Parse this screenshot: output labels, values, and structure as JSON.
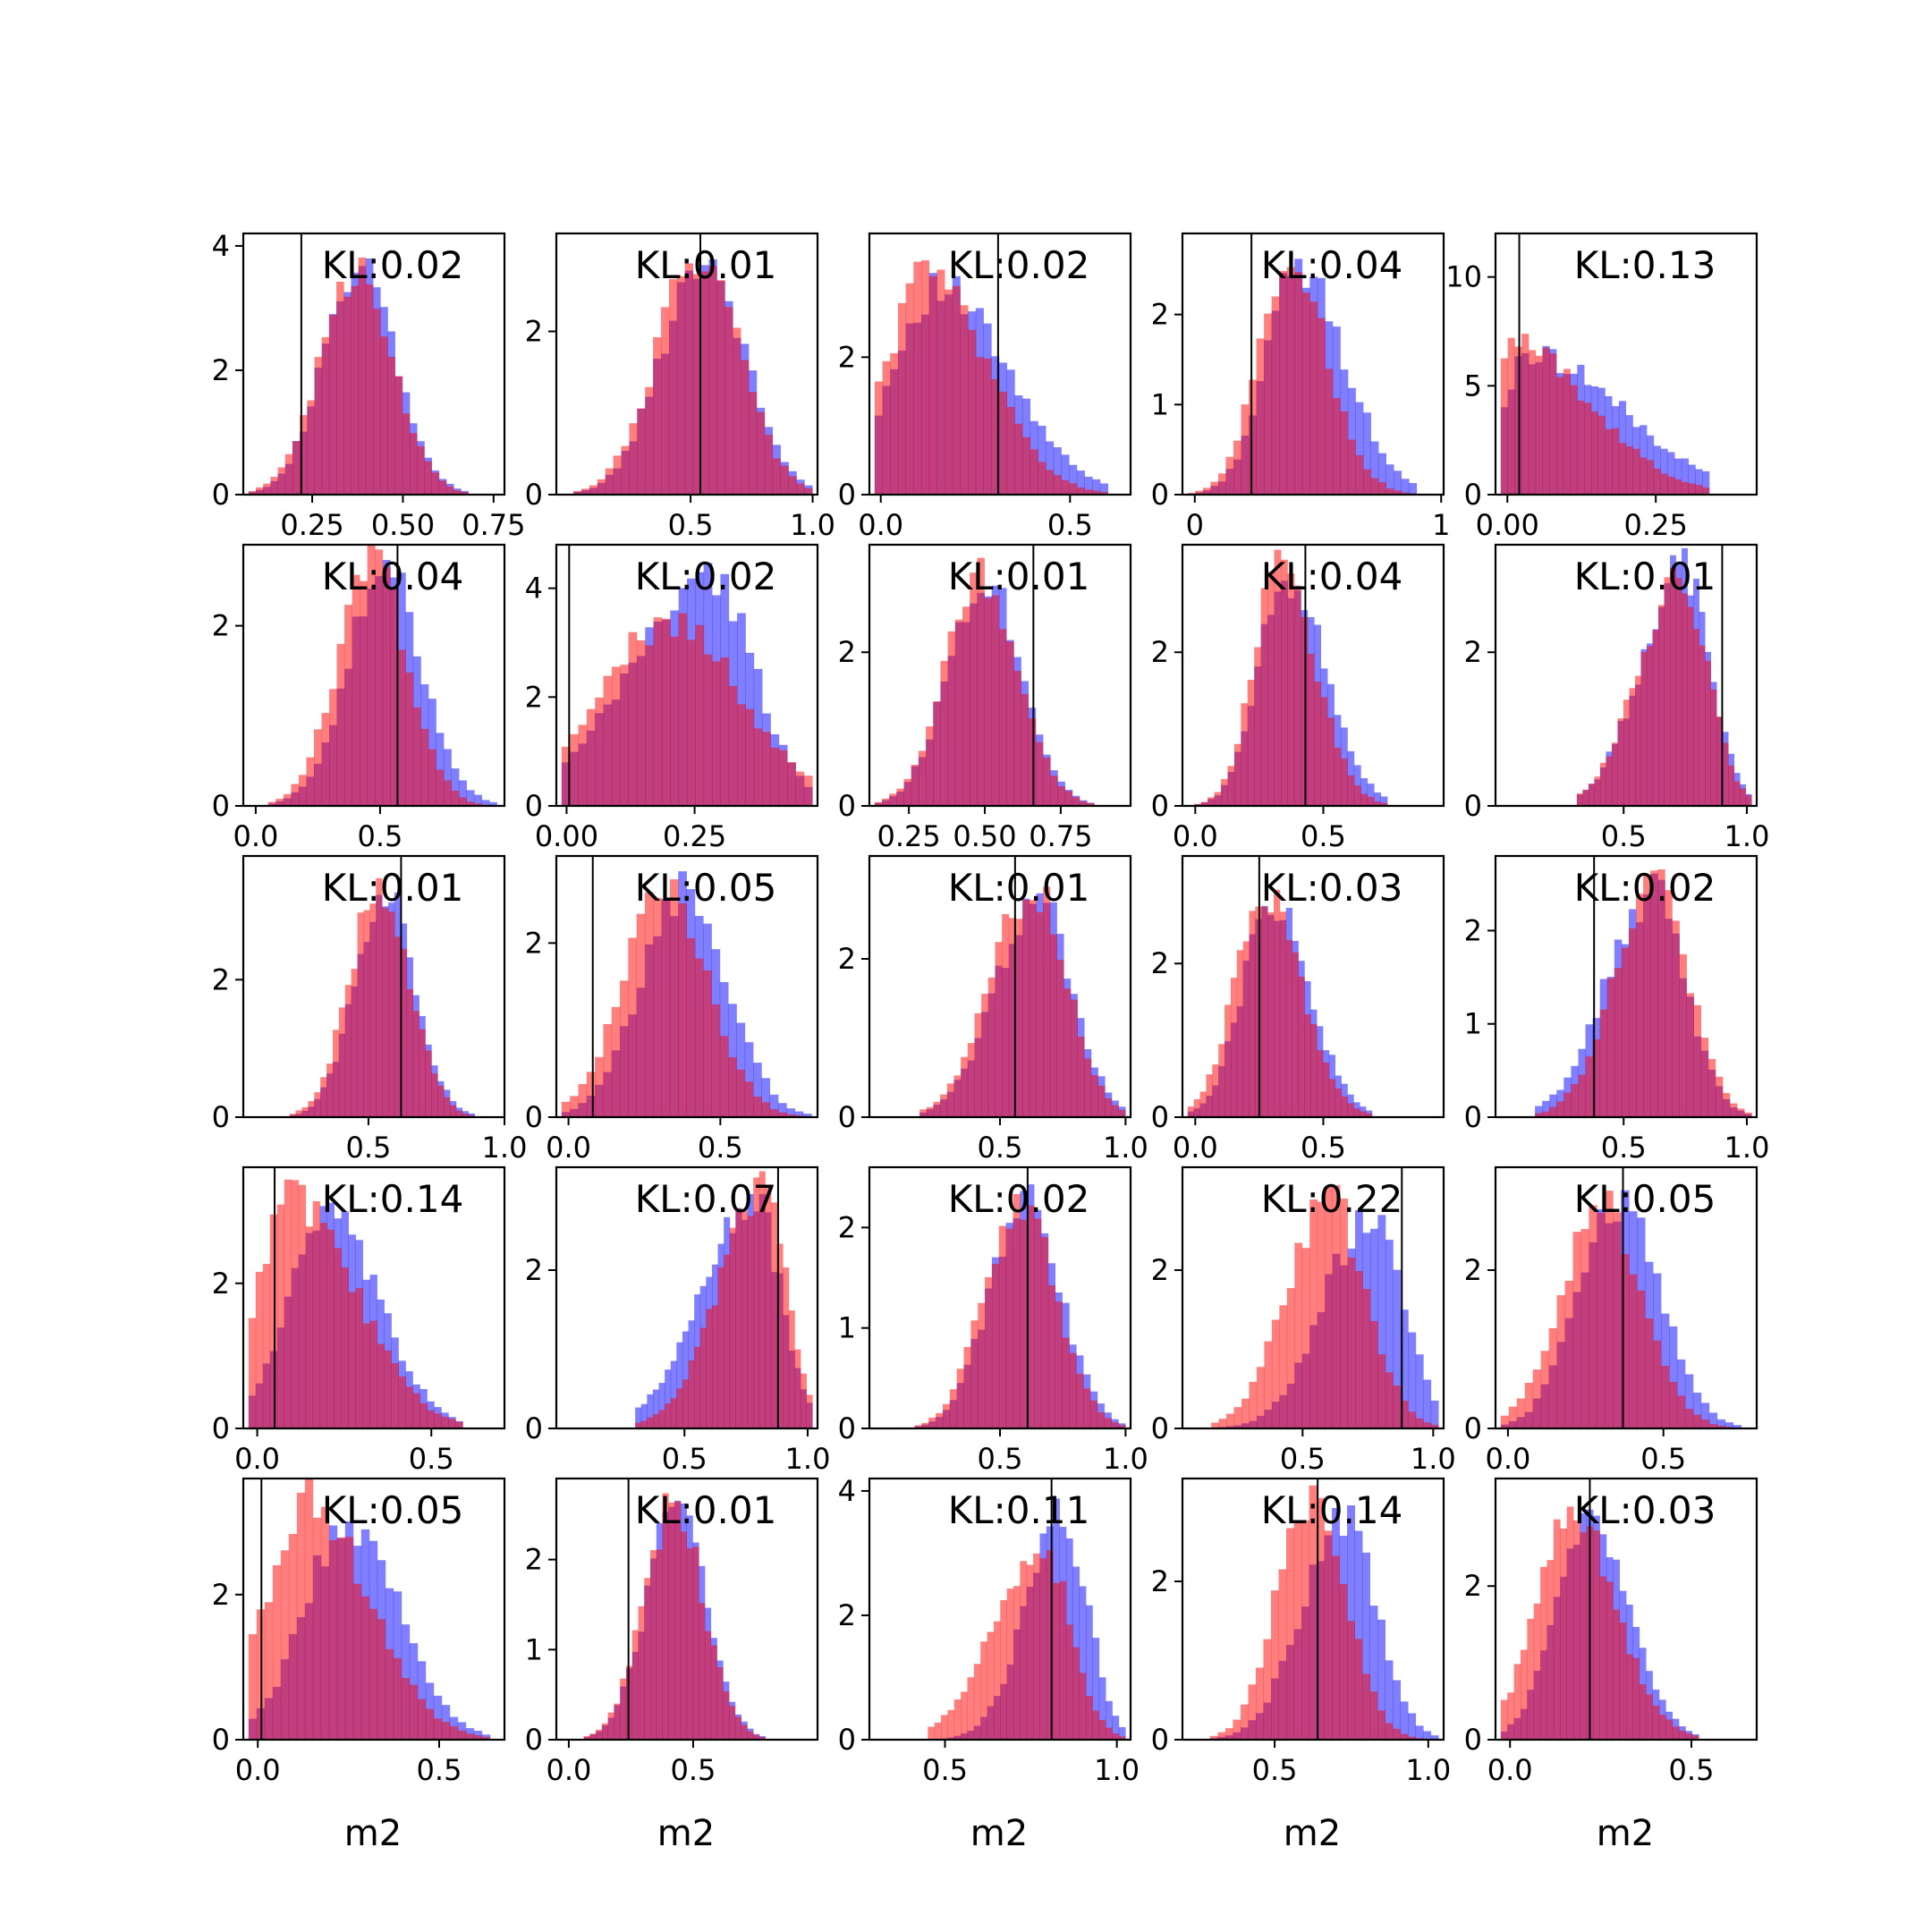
{
  "colors": {
    "series_a": "#0000ff",
    "series_b": "#ff0000",
    "frame": "#000000"
  },
  "chart_data": [
    {
      "type": "bar",
      "row": 0,
      "col": 0,
      "annotation": "KL:0.02",
      "x_range": [
        0.06,
        0.78
      ],
      "y_range": [
        0,
        4.2
      ],
      "x_ticks": [
        0.25,
        0.5,
        0.75
      ],
      "x_tick_labels": [
        "0.25",
        "0.50",
        "0.75"
      ],
      "y_ticks": [
        0,
        2,
        4
      ],
      "y_tick_labels": [
        "0",
        "2",
        "4"
      ],
      "vline": 0.22,
      "series": [
        {
          "center": 0.38,
          "spread": 0.1,
          "skew": 0,
          "peak": 3.6
        },
        {
          "center": 0.37,
          "spread": 0.1,
          "skew": 0,
          "peak": 3.6
        }
      ]
    },
    {
      "type": "bar",
      "row": 0,
      "col": 1,
      "annotation": "KL:0.01",
      "x_range": [
        -0.05,
        1.02
      ],
      "y_range": [
        0,
        3.2
      ],
      "x_ticks": [
        0.5,
        1.0
      ],
      "x_tick_labels": [
        "0.5",
        "1.0"
      ],
      "y_ticks": [
        0,
        2
      ],
      "y_tick_labels": [
        "0",
        "2"
      ],
      "vline": 0.54,
      "series": [
        {
          "center": 0.55,
          "spread": 0.17,
          "skew": 0,
          "peak": 2.9
        },
        {
          "center": 0.53,
          "spread": 0.17,
          "skew": 0,
          "peak": 2.9
        }
      ]
    },
    {
      "type": "bar",
      "row": 0,
      "col": 2,
      "annotation": "KL:0.02",
      "x_range": [
        -0.03,
        0.66
      ],
      "y_range": [
        0,
        3.8
      ],
      "x_ticks": [
        0.0,
        0.5
      ],
      "x_tick_labels": [
        "0.0",
        "0.5"
      ],
      "y_ticks": [
        0,
        2
      ],
      "y_tick_labels": [
        "0",
        "2"
      ],
      "vline": 0.31,
      "series": [
        {
          "center": 0.15,
          "spread": 0.15,
          "skew": 0.6,
          "peak": 3.0
        },
        {
          "center": 0.12,
          "spread": 0.13,
          "skew": 0.6,
          "peak": 3.2
        }
      ]
    },
    {
      "type": "bar",
      "row": 0,
      "col": 3,
      "annotation": "KL:0.04",
      "x_range": [
        -0.05,
        1.01
      ],
      "y_range": [
        0,
        2.9
      ],
      "x_ticks": [
        0,
        1
      ],
      "x_tick_labels": [
        "0",
        "1"
      ],
      "y_ticks": [
        0,
        1,
        2
      ],
      "y_tick_labels": [
        "0",
        "1",
        "2"
      ],
      "vline": 0.23,
      "series": [
        {
          "center": 0.42,
          "spread": 0.16,
          "skew": 0.5,
          "peak": 2.5
        },
        {
          "center": 0.38,
          "spread": 0.14,
          "skew": 0.3,
          "peak": 2.6
        }
      ]
    },
    {
      "type": "bar",
      "row": 0,
      "col": 4,
      "annotation": "KL:0.13",
      "x_range": [
        -0.02,
        0.42
      ],
      "y_range": [
        0,
        12
      ],
      "x_ticks": [
        0.0,
        0.25
      ],
      "x_tick_labels": [
        "0.00",
        "0.25"
      ],
      "y_ticks": [
        0,
        5,
        10
      ],
      "y_tick_labels": [
        "0",
        "5",
        "10"
      ],
      "vline": 0.02,
      "series": [
        {
          "center": 0.04,
          "spread": 0.1,
          "skew": 1.5,
          "peak": 6.5,
          "bump": 0.17
        },
        {
          "center": 0.0,
          "spread": 0.08,
          "skew": 2.0,
          "peak": 7.0
        }
      ]
    },
    {
      "type": "bar",
      "row": 1,
      "col": 0,
      "annotation": "KL:0.04",
      "x_range": [
        -0.05,
        1.0
      ],
      "y_range": [
        0,
        2.9
      ],
      "x_ticks": [
        0.0,
        0.5
      ],
      "x_tick_labels": [
        "0.0",
        "0.5"
      ],
      "y_ticks": [
        0,
        2
      ],
      "y_tick_labels": [
        "0",
        "2"
      ],
      "vline": 0.57,
      "series": [
        {
          "center": 0.52,
          "spread": 0.15,
          "skew": 0,
          "peak": 2.6
        },
        {
          "center": 0.47,
          "spread": 0.14,
          "skew": 0,
          "peak": 2.7
        }
      ]
    },
    {
      "type": "bar",
      "row": 1,
      "col": 1,
      "annotation": "KL:0.02",
      "x_range": [
        -0.02,
        0.49
      ],
      "y_range": [
        0,
        4.8
      ],
      "x_ticks": [
        0.0,
        0.25
      ],
      "x_tick_labels": [
        "0.00",
        "0.25"
      ],
      "y_ticks": [
        0,
        2,
        4
      ],
      "y_tick_labels": [
        "0",
        "2",
        "4"
      ],
      "vline": 0.005,
      "series": [
        {
          "center": 0.28,
          "spread": 0.12,
          "skew": -0.8,
          "peak": 4.2
        },
        {
          "center": 0.2,
          "spread": 0.14,
          "skew": 0,
          "peak": 3.4
        }
      ]
    },
    {
      "type": "bar",
      "row": 1,
      "col": 2,
      "annotation": "KL:0.01",
      "x_range": [
        0.12,
        0.98
      ],
      "y_range": [
        0,
        3.4
      ],
      "x_ticks": [
        0.25,
        0.5,
        0.75
      ],
      "x_tick_labels": [
        "0.25",
        "0.50",
        "0.75"
      ],
      "y_ticks": [
        0,
        2
      ],
      "y_tick_labels": [
        "0",
        "2"
      ],
      "vline": 0.66,
      "series": [
        {
          "center": 0.5,
          "spread": 0.12,
          "skew": 0,
          "peak": 3.0
        },
        {
          "center": 0.49,
          "spread": 0.12,
          "skew": 0,
          "peak": 3.0
        }
      ]
    },
    {
      "type": "bar",
      "row": 1,
      "col": 3,
      "annotation": "KL:0.04",
      "x_range": [
        -0.05,
        0.97
      ],
      "y_range": [
        0,
        3.4
      ],
      "x_ticks": [
        0.0,
        0.5
      ],
      "x_tick_labels": [
        "0.0",
        "0.5"
      ],
      "y_ticks": [
        0,
        2
      ],
      "y_tick_labels": [
        "0",
        "2"
      ],
      "vline": 0.43,
      "series": [
        {
          "center": 0.36,
          "spread": 0.13,
          "skew": 0.4,
          "peak": 3.0
        },
        {
          "center": 0.33,
          "spread": 0.12,
          "skew": 0.4,
          "peak": 3.1
        }
      ]
    },
    {
      "type": "bar",
      "row": 1,
      "col": 4,
      "annotation": "KL:0.01",
      "x_range": [
        -0.02,
        1.04
      ],
      "y_range": [
        0,
        3.4
      ],
      "x_ticks": [
        0.5,
        1.0
      ],
      "x_tick_labels": [
        "0.5",
        "1.0"
      ],
      "y_ticks": [
        0,
        2
      ],
      "y_tick_labels": [
        "0",
        "2"
      ],
      "vline": 0.9,
      "series": [
        {
          "center": 0.74,
          "spread": 0.14,
          "skew": -0.6,
          "peak": 3.1
        },
        {
          "center": 0.73,
          "spread": 0.14,
          "skew": -0.6,
          "peak": 3.0
        }
      ]
    },
    {
      "type": "bar",
      "row": 2,
      "col": 0,
      "annotation": "KL:0.01",
      "x_range": [
        0.04,
        1.0
      ],
      "y_range": [
        0,
        3.8
      ],
      "x_ticks": [
        0.5,
        1.0
      ],
      "x_tick_labels": [
        "0.5",
        "1.0"
      ],
      "y_ticks": [
        0,
        2
      ],
      "y_tick_labels": [
        "0",
        "2"
      ],
      "vline": 0.62,
      "series": [
        {
          "center": 0.56,
          "spread": 0.11,
          "skew": 0,
          "peak": 3.3
        },
        {
          "center": 0.54,
          "spread": 0.11,
          "skew": 0,
          "peak": 3.4
        }
      ]
    },
    {
      "type": "bar",
      "row": 2,
      "col": 1,
      "annotation": "KL:0.05",
      "x_range": [
        -0.04,
        0.82
      ],
      "y_range": [
        0,
        3.0
      ],
      "x_ticks": [
        0.0,
        0.5
      ],
      "x_tick_labels": [
        "0.0",
        "0.5"
      ],
      "y_ticks": [
        0,
        2
      ],
      "y_tick_labels": [
        "0",
        "2"
      ],
      "vline": 0.08,
      "series": [
        {
          "center": 0.38,
          "spread": 0.14,
          "skew": 0,
          "peak": 2.6
        },
        {
          "center": 0.32,
          "spread": 0.14,
          "skew": 0,
          "peak": 2.6
        }
      ]
    },
    {
      "type": "bar",
      "row": 2,
      "col": 2,
      "annotation": "KL:0.01",
      "x_range": [
        -0.02,
        1.02
      ],
      "y_range": [
        0,
        3.3
      ],
      "x_ticks": [
        0.5,
        1.0
      ],
      "x_tick_labels": [
        "0.5",
        "1.0"
      ],
      "y_ticks": [
        0,
        2
      ],
      "y_tick_labels": [
        "0",
        "2"
      ],
      "vline": 0.56,
      "series": [
        {
          "center": 0.65,
          "spread": 0.15,
          "skew": -0.3,
          "peak": 2.8
        },
        {
          "center": 0.63,
          "spread": 0.15,
          "skew": -0.3,
          "peak": 2.9
        }
      ]
    },
    {
      "type": "bar",
      "row": 2,
      "col": 3,
      "annotation": "KL:0.03",
      "x_range": [
        -0.05,
        0.97
      ],
      "y_range": [
        0,
        3.4
      ],
      "x_ticks": [
        0.0,
        0.5
      ],
      "x_tick_labels": [
        "0.0",
        "0.5"
      ],
      "y_ticks": [
        0,
        2
      ],
      "y_tick_labels": [
        "0",
        "2"
      ],
      "vline": 0.25,
      "series": [
        {
          "center": 0.3,
          "spread": 0.13,
          "skew": 0.3,
          "peak": 2.8
        },
        {
          "center": 0.27,
          "spread": 0.13,
          "skew": 0.3,
          "peak": 2.9
        }
      ]
    },
    {
      "type": "bar",
      "row": 2,
      "col": 4,
      "annotation": "KL:0.02",
      "x_range": [
        -0.02,
        1.04
      ],
      "y_range": [
        0,
        2.8
      ],
      "x_ticks": [
        0.5,
        1.0
      ],
      "x_tick_labels": [
        "0.5",
        "1.0"
      ],
      "y_ticks": [
        0,
        1,
        2
      ],
      "y_tick_labels": [
        "0",
        "1",
        "2"
      ],
      "vline": 0.38,
      "series": [
        {
          "center": 0.62,
          "spread": 0.16,
          "skew": -0.5,
          "peak": 2.4
        },
        {
          "center": 0.63,
          "spread": 0.15,
          "skew": -0.3,
          "peak": 2.5
        }
      ]
    },
    {
      "type": "bar",
      "row": 3,
      "col": 0,
      "annotation": "KL:0.14",
      "x_range": [
        -0.04,
        0.71
      ],
      "y_range": [
        0,
        3.6
      ],
      "x_ticks": [
        0.0,
        0.5
      ],
      "x_tick_labels": [
        "0.0",
        "0.5"
      ],
      "y_ticks": [
        0,
        2
      ],
      "y_tick_labels": [
        "0",
        "2"
      ],
      "vline": 0.05,
      "series": [
        {
          "center": 0.2,
          "spread": 0.13,
          "skew": 0.4,
          "peak": 2.9
        },
        {
          "center": 0.1,
          "spread": 0.14,
          "skew": 0.8,
          "peak": 3.2
        }
      ]
    },
    {
      "type": "bar",
      "row": 3,
      "col": 1,
      "annotation": "KL:0.07",
      "x_range": [
        -0.02,
        1.04
      ],
      "y_range": [
        0,
        3.3
      ],
      "x_ticks": [
        0.5,
        1.0
      ],
      "x_tick_labels": [
        "0.5",
        "1.0"
      ],
      "y_ticks": [
        0,
        2
      ],
      "y_tick_labels": [
        "0",
        "2"
      ],
      "vline": 0.88,
      "series": [
        {
          "center": 0.78,
          "spread": 0.16,
          "skew": -0.9,
          "peak": 2.9
        },
        {
          "center": 0.82,
          "spread": 0.14,
          "skew": -0.9,
          "peak": 3.0
        }
      ]
    },
    {
      "type": "bar",
      "row": 3,
      "col": 2,
      "annotation": "KL:0.02",
      "x_range": [
        -0.02,
        1.02
      ],
      "y_range": [
        0,
        2.6
      ],
      "x_ticks": [
        0.5,
        1.0
      ],
      "x_tick_labels": [
        "0.5",
        "1.0"
      ],
      "y_ticks": [
        0,
        1,
        2
      ],
      "y_tick_labels": [
        "0",
        "1",
        "2"
      ],
      "vline": 0.61,
      "series": [
        {
          "center": 0.6,
          "spread": 0.14,
          "skew": 0,
          "peak": 2.3
        },
        {
          "center": 0.58,
          "spread": 0.14,
          "skew": 0,
          "peak": 2.3
        }
      ]
    },
    {
      "type": "bar",
      "row": 3,
      "col": 3,
      "annotation": "KL:0.22",
      "x_range": [
        0.04,
        1.04
      ],
      "y_range": [
        0,
        3.3
      ],
      "x_ticks": [
        0.5,
        1.0
      ],
      "x_tick_labels": [
        "0.5",
        "1.0"
      ],
      "y_ticks": [
        0,
        2
      ],
      "y_tick_labels": [
        "0",
        "2"
      ],
      "vline": 0.88,
      "series": [
        {
          "center": 0.76,
          "spread": 0.15,
          "skew": -0.5,
          "peak": 2.7
        },
        {
          "center": 0.6,
          "spread": 0.15,
          "skew": -0.2,
          "peak": 2.9
        }
      ]
    },
    {
      "type": "bar",
      "row": 3,
      "col": 4,
      "annotation": "KL:0.05",
      "x_range": [
        -0.04,
        0.8
      ],
      "y_range": [
        0,
        3.3
      ],
      "x_ticks": [
        0.0,
        0.5
      ],
      "x_tick_labels": [
        "0.0",
        "0.5"
      ],
      "y_ticks": [
        0,
        2
      ],
      "y_tick_labels": [
        "0",
        "2"
      ],
      "vline": 0.37,
      "series": [
        {
          "center": 0.36,
          "spread": 0.13,
          "skew": 0,
          "peak": 2.9
        },
        {
          "center": 0.3,
          "spread": 0.13,
          "skew": 0,
          "peak": 2.8
        }
      ]
    },
    {
      "type": "bar",
      "row": 4,
      "col": 0,
      "annotation": "KL:0.05",
      "x_range": [
        -0.04,
        0.68
      ],
      "y_range": [
        0,
        3.6
      ],
      "x_ticks": [
        0.0,
        0.5
      ],
      "x_tick_labels": [
        "0.0",
        "0.5"
      ],
      "y_ticks": [
        0,
        2
      ],
      "y_tick_labels": [
        "0",
        "2"
      ],
      "vline": 0.01,
      "series": [
        {
          "center": 0.25,
          "spread": 0.13,
          "skew": 0.2,
          "peak": 3.0
        },
        {
          "center": 0.14,
          "spread": 0.14,
          "skew": 0.5,
          "peak": 3.3
        }
      ]
    },
    {
      "type": "bar",
      "row": 4,
      "col": 1,
      "annotation": "KL:0.01",
      "x_range": [
        -0.05,
        1.0
      ],
      "y_range": [
        0,
        2.9
      ],
      "x_ticks": [
        0.0,
        0.5
      ],
      "x_tick_labels": [
        "0.0",
        "0.5"
      ],
      "y_ticks": [
        0,
        1,
        2
      ],
      "y_tick_labels": [
        "0",
        "1",
        "2"
      ],
      "vline": 0.24,
      "series": [
        {
          "center": 0.43,
          "spread": 0.12,
          "skew": 0,
          "peak": 2.6
        },
        {
          "center": 0.42,
          "spread": 0.12,
          "skew": 0,
          "peak": 2.6
        }
      ]
    },
    {
      "type": "bar",
      "row": 4,
      "col": 2,
      "annotation": "KL:0.11",
      "x_range": [
        0.28,
        1.04
      ],
      "y_range": [
        0,
        4.2
      ],
      "x_ticks": [
        0.5,
        1.0
      ],
      "x_tick_labels": [
        "0.5",
        "1.0"
      ],
      "y_ticks": [
        0,
        2,
        4
      ],
      "y_tick_labels": [
        "0",
        "2",
        "4"
      ],
      "vline": 0.81,
      "series": [
        {
          "center": 0.84,
          "spread": 0.09,
          "skew": -0.5,
          "peak": 3.6
        },
        {
          "center": 0.78,
          "spread": 0.11,
          "skew": -0.7,
          "peak": 3.1
        }
      ]
    },
    {
      "type": "bar",
      "row": 4,
      "col": 3,
      "annotation": "KL:0.14",
      "x_range": [
        0.2,
        1.05
      ],
      "y_range": [
        0,
        3.3
      ],
      "x_ticks": [
        0.5,
        1.0
      ],
      "x_tick_labels": [
        "0.5",
        "1.0"
      ],
      "y_ticks": [
        0,
        2
      ],
      "y_tick_labels": [
        "0",
        "2"
      ],
      "vline": 0.64,
      "series": [
        {
          "center": 0.72,
          "spread": 0.12,
          "skew": -0.3,
          "peak": 2.8
        },
        {
          "center": 0.62,
          "spread": 0.11,
          "skew": 0,
          "peak": 3.1
        }
      ]
    },
    {
      "type": "bar",
      "row": 4,
      "col": 4,
      "annotation": "KL:0.03",
      "x_range": [
        -0.04,
        0.68
      ],
      "y_range": [
        0,
        3.4
      ],
      "x_ticks": [
        0.0,
        0.5
      ],
      "x_tick_labels": [
        "0.0",
        "0.5"
      ],
      "y_ticks": [
        0,
        2
      ],
      "y_tick_labels": [
        "0",
        "2"
      ],
      "vline": 0.22,
      "series": [
        {
          "center": 0.22,
          "spread": 0.1,
          "skew": 0.2,
          "peak": 2.9
        },
        {
          "center": 0.17,
          "spread": 0.11,
          "skew": 0.3,
          "peak": 2.9
        }
      ]
    }
  ],
  "xlabels": [
    "m2",
    "m2",
    "m2",
    "m2",
    "m2"
  ]
}
